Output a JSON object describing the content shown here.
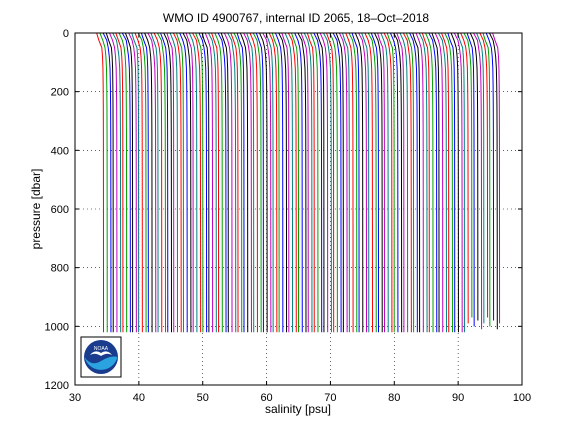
{
  "chart_data": {
    "type": "line",
    "title": "WMO ID 4900767, internal ID 2065, 18–Oct–2018",
    "xlabel": "salinity [psu]",
    "ylabel": "pressure [dbar]",
    "xlim": [
      30,
      100
    ],
    "ylim": [
      1200,
      0
    ],
    "y_reversed": true,
    "grid": true,
    "x_ticks": [
      30,
      40,
      50,
      60,
      70,
      80,
      90,
      100
    ],
    "y_ticks": [
      0,
      200,
      400,
      600,
      800,
      1000,
      1200
    ],
    "series_colors": [
      "#ff0000",
      "#00a000",
      "#0000ff",
      "#000000",
      "#c000c0",
      "#008080"
    ],
    "profiles": {
      "count": 125,
      "first_offset_psu": 34.2,
      "spacing_psu": 0.5,
      "pressure_levels_dbar": [
        0,
        10,
        25,
        50,
        80,
        120,
        180,
        250,
        350,
        500,
        700,
        900,
        1020
      ],
      "shape_psu": [
        -0.8,
        -0.6,
        -0.3,
        0.0,
        0.15,
        0.25,
        0.3,
        0.33,
        0.35,
        0.36,
        0.37,
        0.375,
        0.38
      ]
    }
  },
  "logo": {
    "text": "NOAA"
  }
}
